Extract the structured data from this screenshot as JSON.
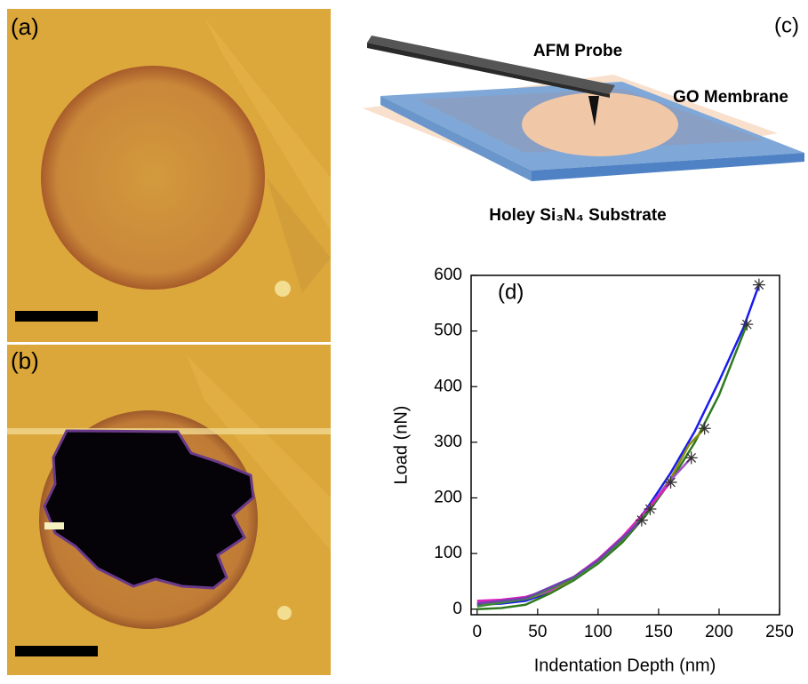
{
  "panels": {
    "a": "(a)",
    "b": "(b)",
    "c": "(c)"
  },
  "schematic": {
    "probe_label": "AFM Probe",
    "membrane_label": "GO Membrane",
    "substrate_label": "Holey Si₃N₄ Substrate"
  },
  "chart_data": {
    "type": "line",
    "panel_label": "(d)",
    "x_label": "Indentation Depth (nm)",
    "y_label": "Load (nN)",
    "xlim": [
      -5,
      250
    ],
    "ylim": [
      -10,
      600
    ],
    "xticks": [
      0,
      50,
      100,
      150,
      200,
      250
    ],
    "yticks": [
      0,
      100,
      200,
      300,
      400,
      500,
      600
    ],
    "end_marker": "star",
    "series": [
      {
        "color": "#1a1aee",
        "x": [
          0,
          20,
          40,
          60,
          80,
          100,
          120,
          140,
          160,
          180,
          200,
          220,
          233
        ],
        "values": [
          8,
          10,
          15,
          30,
          55,
          85,
          125,
          180,
          245,
          320,
          410,
          505,
          583
        ]
      },
      {
        "color": "#2f7a1f",
        "x": [
          0,
          20,
          40,
          60,
          80,
          100,
          120,
          140,
          160,
          180,
          200,
          223
        ],
        "values": [
          0,
          2,
          8,
          28,
          52,
          82,
          120,
          170,
          230,
          300,
          385,
          512
        ]
      },
      {
        "color": "#8c8c10",
        "x": [
          0,
          20,
          40,
          60,
          80,
          100,
          120,
          140,
          160,
          175,
          188
        ],
        "values": [
          10,
          12,
          18,
          32,
          55,
          85,
          125,
          175,
          235,
          295,
          325
        ]
      },
      {
        "color": "#a050c8",
        "x": [
          0,
          20,
          40,
          60,
          80,
          100,
          120,
          140,
          160,
          177
        ],
        "values": [
          12,
          15,
          20,
          33,
          57,
          88,
          128,
          178,
          232,
          272
        ]
      },
      {
        "color": "#e020c0",
        "x": [
          0,
          20,
          40,
          60,
          80,
          100,
          120,
          140,
          160
        ],
        "values": [
          15,
          17,
          22,
          35,
          58,
          90,
          130,
          178,
          228
        ]
      },
      {
        "color": "#3a8a3a",
        "x": [
          0,
          40,
          80,
          100,
          120,
          143
        ],
        "values": [
          5,
          18,
          55,
          85,
          125,
          180
        ]
      },
      {
        "color": "#7040b0",
        "x": [
          0,
          40,
          80,
          100,
          120,
          136
        ],
        "values": [
          10,
          20,
          58,
          88,
          128,
          160
        ]
      }
    ]
  }
}
